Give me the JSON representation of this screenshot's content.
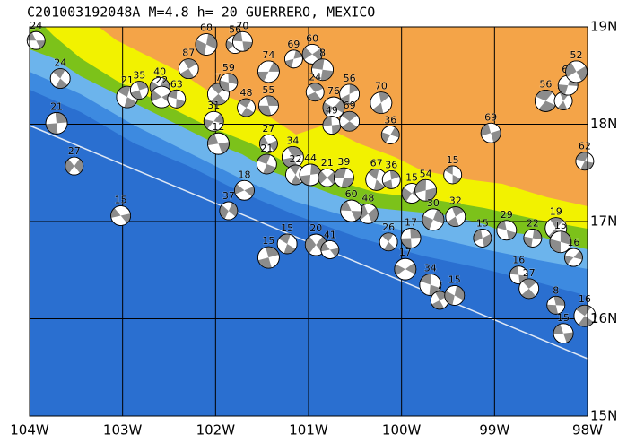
{
  "title": "C201003192048A M=4.8 h= 20 GUERRERO, MEXICO",
  "map": {
    "lon_range": [
      -104,
      -98
    ],
    "lat_range": [
      15,
      19
    ],
    "lon_ticks": [
      {
        "value": -104,
        "label": "104W"
      },
      {
        "value": -103,
        "label": "103W"
      },
      {
        "value": -102,
        "label": "102W"
      },
      {
        "value": -101,
        "label": "101W"
      },
      {
        "value": -100,
        "label": "100W"
      },
      {
        "value": -99,
        "label": "99W"
      },
      {
        "value": -98,
        "label": "98W"
      }
    ],
    "lat_ticks": [
      {
        "value": 19,
        "label": "19N"
      },
      {
        "value": 18,
        "label": "18N"
      },
      {
        "value": 17,
        "label": "17N"
      },
      {
        "value": 16,
        "label": "16N"
      },
      {
        "value": 15,
        "label": "15N"
      }
    ],
    "events": [
      {
        "lon": -103.93,
        "lat": 18.86,
        "depth": 24
      },
      {
        "lon": -103.67,
        "lat": 18.47,
        "depth": 24
      },
      {
        "lon": -103.71,
        "lat": 18.01,
        "depth": 21
      },
      {
        "lon": -103.52,
        "lat": 17.57,
        "depth": 27
      },
      {
        "lon": -103.02,
        "lat": 17.06,
        "depth": 15
      },
      {
        "lon": -102.95,
        "lat": 18.28,
        "depth": 21
      },
      {
        "lon": -102.82,
        "lat": 18.35,
        "depth": 35
      },
      {
        "lon": -102.6,
        "lat": 18.38,
        "depth": 40
      },
      {
        "lon": -102.58,
        "lat": 18.28,
        "depth": 22
      },
      {
        "lon": -102.42,
        "lat": 18.26,
        "depth": 63
      },
      {
        "lon": -102.29,
        "lat": 18.57,
        "depth": 87
      },
      {
        "lon": -102.1,
        "lat": 18.82,
        "depth": 68
      },
      {
        "lon": -101.79,
        "lat": 18.82,
        "depth": 56
      },
      {
        "lon": -101.71,
        "lat": 18.85,
        "depth": 70
      },
      {
        "lon": -101.97,
        "lat": 18.31,
        "depth": 7
      },
      {
        "lon": -101.86,
        "lat": 18.43,
        "depth": 59
      },
      {
        "lon": -102.02,
        "lat": 18.03,
        "depth": 31
      },
      {
        "lon": -101.97,
        "lat": 17.8,
        "depth": 12
      },
      {
        "lon": -101.67,
        "lat": 18.17,
        "depth": 48
      },
      {
        "lon": -101.43,
        "lat": 18.19,
        "depth": 55
      },
      {
        "lon": -101.43,
        "lat": 18.54,
        "depth": 74
      },
      {
        "lon": -101.43,
        "lat": 17.8,
        "depth": 27
      },
      {
        "lon": -101.45,
        "lat": 17.59,
        "depth": 21
      },
      {
        "lon": -101.17,
        "lat": 17.66,
        "depth": 34
      },
      {
        "lon": -101.16,
        "lat": 18.67,
        "depth": 69
      },
      {
        "lon": -100.96,
        "lat": 18.72,
        "depth": 60
      },
      {
        "lon": -100.85,
        "lat": 18.56,
        "depth": 8
      },
      {
        "lon": -100.93,
        "lat": 18.33,
        "depth": 24
      },
      {
        "lon": -100.56,
        "lat": 18.31,
        "depth": 56
      },
      {
        "lon": -100.73,
        "lat": 18.17,
        "depth": 76
      },
      {
        "lon": -100.75,
        "lat": 17.99,
        "depth": 49
      },
      {
        "lon": -100.56,
        "lat": 18.03,
        "depth": 69
      },
      {
        "lon": -100.22,
        "lat": 18.22,
        "depth": 70
      },
      {
        "lon": -100.12,
        "lat": 17.89,
        "depth": 36
      },
      {
        "lon": -99.04,
        "lat": 17.91,
        "depth": 69
      },
      {
        "lon": -98.45,
        "lat": 18.24,
        "depth": 56
      },
      {
        "lon": -98.26,
        "lat": 18.24,
        "depth": 59
      },
      {
        "lon": -98.21,
        "lat": 18.4,
        "depth": 61
      },
      {
        "lon": -98.12,
        "lat": 18.54,
        "depth": 52
      },
      {
        "lon": -98.03,
        "lat": 17.62,
        "depth": 62
      },
      {
        "lon": -101.14,
        "lat": 17.48,
        "depth": 22
      },
      {
        "lon": -100.98,
        "lat": 17.48,
        "depth": 44
      },
      {
        "lon": -100.8,
        "lat": 17.45,
        "depth": 21
      },
      {
        "lon": -100.62,
        "lat": 17.45,
        "depth": 39
      },
      {
        "lon": -100.27,
        "lat": 17.43,
        "depth": 67
      },
      {
        "lon": -100.11,
        "lat": 17.43,
        "depth": 36
      },
      {
        "lon": -99.89,
        "lat": 17.29,
        "depth": 15
      },
      {
        "lon": -99.74,
        "lat": 17.32,
        "depth": 54
      },
      {
        "lon": -99.45,
        "lat": 17.48,
        "depth": 15
      },
      {
        "lon": -99.42,
        "lat": 17.05,
        "depth": 32
      },
      {
        "lon": -99.66,
        "lat": 17.02,
        "depth": 30
      },
      {
        "lon": -99.13,
        "lat": 16.83,
        "depth": 15
      },
      {
        "lon": -98.87,
        "lat": 16.91,
        "depth": 29
      },
      {
        "lon": -98.34,
        "lat": 16.93,
        "depth": 19
      },
      {
        "lon": -98.59,
        "lat": 16.83,
        "depth": 22
      },
      {
        "lon": -100.36,
        "lat": 17.08,
        "depth": 48
      },
      {
        "lon": -100.54,
        "lat": 17.11,
        "depth": 60
      },
      {
        "lon": -100.14,
        "lat": 16.79,
        "depth": 26
      },
      {
        "lon": -99.9,
        "lat": 16.83,
        "depth": 17
      },
      {
        "lon": -100.92,
        "lat": 16.76,
        "depth": 20
      },
      {
        "lon": -100.77,
        "lat": 16.71,
        "depth": 41
      },
      {
        "lon": -101.23,
        "lat": 16.77,
        "depth": 15
      },
      {
        "lon": -101.43,
        "lat": 16.63,
        "depth": 15
      },
      {
        "lon": -101.86,
        "lat": 17.11,
        "depth": 37
      },
      {
        "lon": -101.69,
        "lat": 17.32,
        "depth": 18
      },
      {
        "lon": -99.69,
        "lat": 16.35,
        "depth": 34
      },
      {
        "lon": -99.59,
        "lat": 16.19,
        "depth": 7
      },
      {
        "lon": -99.43,
        "lat": 16.24,
        "depth": 15
      },
      {
        "lon": -99.96,
        "lat": 16.51,
        "depth": 17
      },
      {
        "lon": -98.74,
        "lat": 16.45,
        "depth": 16
      },
      {
        "lon": -98.63,
        "lat": 16.31,
        "depth": 27
      },
      {
        "lon": -98.29,
        "lat": 16.79,
        "depth": 15
      },
      {
        "lon": -98.15,
        "lat": 16.63,
        "depth": 16
      },
      {
        "lon": -98.26,
        "lat": 15.85,
        "depth": 15
      },
      {
        "lon": -98.03,
        "lat": 16.03,
        "depth": 16
      },
      {
        "lon": -98.34,
        "lat": 16.14,
        "depth": 8
      }
    ]
  }
}
